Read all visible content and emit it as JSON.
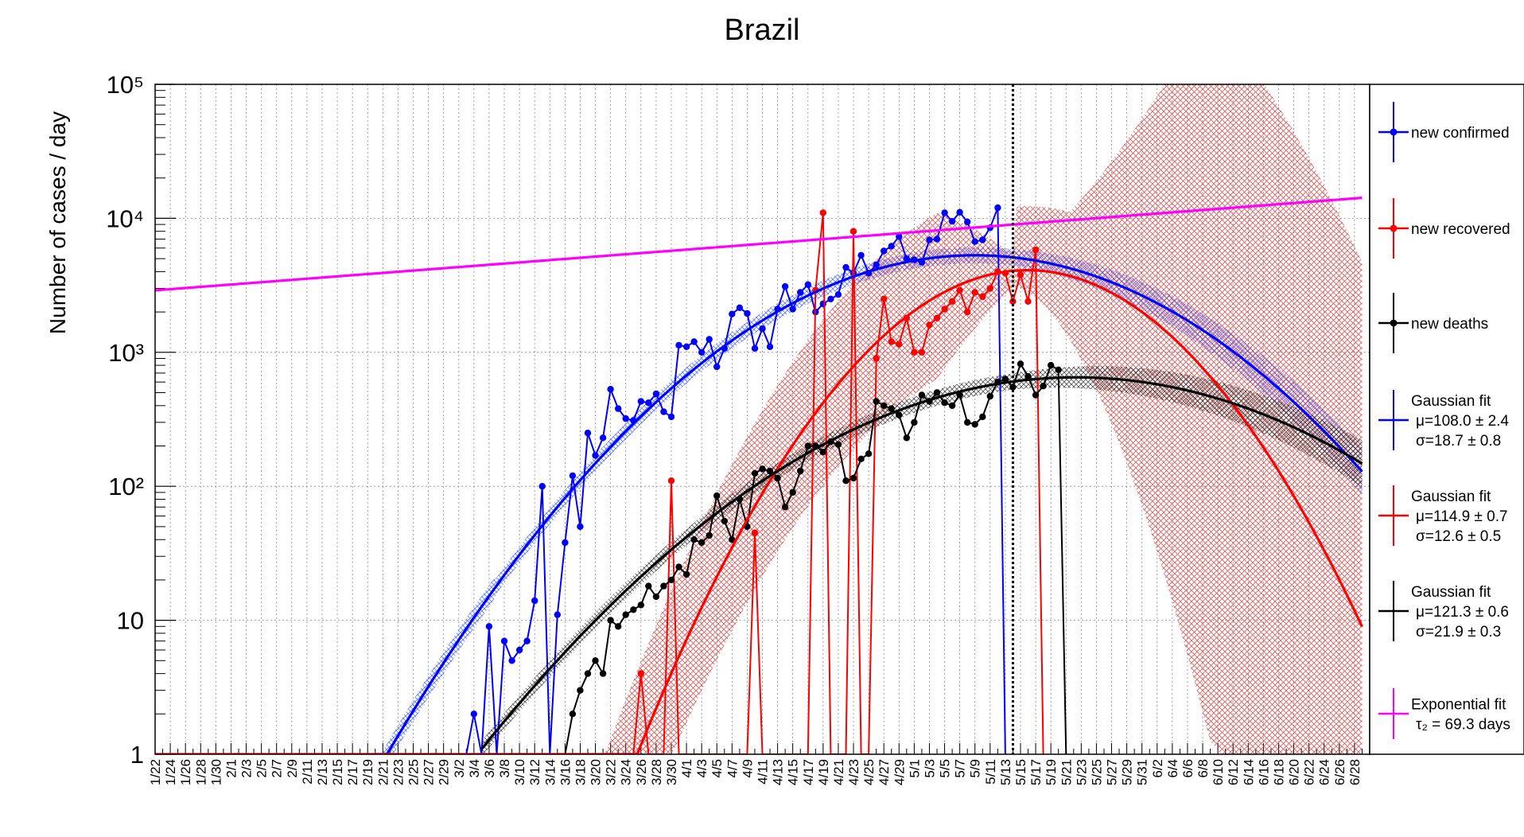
{
  "chart_data": {
    "type": "line",
    "title": "Brazil",
    "ylabel": "Number of cases / day",
    "xlabel": "",
    "yscale": "log",
    "ylim": [
      1,
      100000
    ],
    "y_tick_labels": [
      "1",
      "10",
      "10²",
      "10³",
      "10⁴",
      "10⁵"
    ],
    "x_range_days": [
      0,
      160
    ],
    "x_tick_labels": [
      "1/22",
      "1/24",
      "1/26",
      "1/28",
      "1/30",
      "2/1",
      "2/3",
      "2/5",
      "2/7",
      "2/9",
      "2/11",
      "2/13",
      "2/15",
      "2/17",
      "2/19",
      "2/21",
      "2/23",
      "2/25",
      "2/27",
      "2/29",
      "3/2",
      "3/4",
      "3/6",
      "3/8",
      "3/10",
      "3/12",
      "3/14",
      "3/16",
      "3/18",
      "3/20",
      "3/22",
      "3/24",
      "3/26",
      "3/28",
      "3/30",
      "4/1",
      "4/3",
      "4/5",
      "4/7",
      "4/9",
      "4/11",
      "4/13",
      "4/15",
      "4/17",
      "4/19",
      "4/21",
      "4/23",
      "4/25",
      "4/27",
      "4/29",
      "5/1",
      "5/3",
      "5/5",
      "5/7",
      "5/9",
      "5/11",
      "5/13",
      "5/15",
      "5/17",
      "5/19",
      "5/21",
      "5/23",
      "5/25",
      "5/27",
      "5/29",
      "5/31",
      "6/2",
      "6/4",
      "6/6",
      "6/8",
      "6/10",
      "6/12",
      "6/14",
      "6/16",
      "6/18",
      "6/20",
      "6/22",
      "6/24",
      "6/26",
      "6/28"
    ],
    "grid": true,
    "legend_position": "right",
    "current_date_marker": "5/14",
    "legend": [
      {
        "key": "confirmed",
        "lines": [
          "new confirmed"
        ],
        "color": "#0000ff",
        "style": "points"
      },
      {
        "key": "recovered",
        "lines": [
          "new recovered"
        ],
        "color": "#ff0000",
        "style": "points"
      },
      {
        "key": "deaths",
        "lines": [
          "new deaths"
        ],
        "color": "#000000",
        "style": "points"
      },
      {
        "key": "fit_confirmed",
        "lines": [
          "Gaussian fit",
          "μ=108.0 ± 2.4",
          "σ=18.7 ± 0.8"
        ],
        "color": "#0000ff",
        "style": "line"
      },
      {
        "key": "fit_recovered",
        "lines": [
          "Gaussian fit",
          "μ=114.9 ± 0.7",
          "σ=12.6 ± 0.5"
        ],
        "color": "#ff0000",
        "style": "line"
      },
      {
        "key": "fit_deaths",
        "lines": [
          "Gaussian fit",
          "μ=121.3 ± 0.6",
          "σ=21.9 ± 0.3"
        ],
        "color": "#000000",
        "style": "line"
      },
      {
        "key": "fit_exp",
        "lines": [
          "Exponential fit",
          "τ₂ = 69.3 days"
        ],
        "color": "#ff00ff",
        "style": "line"
      }
    ],
    "series": [
      {
        "name": "new confirmed",
        "color": "#0000ff",
        "start_date": "3/3",
        "values": [
          1,
          2,
          1,
          9,
          1,
          7,
          5,
          6,
          7,
          14,
          100,
          1,
          11,
          38,
          120,
          50,
          250,
          170,
          230,
          530,
          380,
          320,
          310,
          430,
          420,
          490,
          360,
          330,
          1130,
          1100,
          1200,
          1000,
          1250,
          780,
          1070,
          1930,
          2150,
          1950,
          1070,
          1500,
          1100,
          2100,
          3100,
          2100,
          2800,
          3200,
          2000,
          2300,
          2500,
          2700,
          4300,
          3900,
          5300,
          3900,
          4500,
          5700,
          6200,
          7300,
          5000,
          4900,
          4700,
          6900,
          7000,
          11000,
          9500,
          11100,
          9400,
          6700,
          6900,
          8500,
          12000,
          1
        ]
      },
      {
        "name": "new recovered",
        "color": "#ff0000",
        "start_date": "3/25",
        "values": [
          1,
          4,
          1,
          1,
          1,
          110,
          1,
          1,
          1,
          1,
          1,
          1,
          1,
          1,
          1,
          1,
          45,
          1,
          1,
          1,
          1,
          1,
          1,
          1,
          2900,
          11000,
          1,
          1,
          1,
          8000,
          1,
          1,
          900,
          2500,
          1200,
          1150,
          1800,
          1000,
          1000,
          1600,
          1800,
          2100,
          2400,
          2900,
          2000,
          2800,
          2600,
          3000,
          4000,
          3900,
          2400,
          3800,
          2400,
          5800,
          1
        ]
      },
      {
        "name": "new deaths",
        "color": "#000000",
        "start_date": "3/16",
        "values": [
          1,
          2,
          3,
          4,
          5,
          4,
          10,
          9,
          11,
          12,
          13,
          18,
          15,
          18,
          20,
          25,
          22,
          40,
          38,
          43,
          85,
          55,
          40,
          80,
          50,
          125,
          135,
          130,
          115,
          70,
          90,
          130,
          200,
          200,
          180,
          215,
          205,
          110,
          115,
          160,
          175,
          430,
          400,
          380,
          340,
          230,
          300,
          480,
          430,
          500,
          420,
          400,
          480,
          300,
          290,
          330,
          470,
          600,
          630,
          550,
          820,
          660,
          480,
          560,
          800,
          740,
          1
        ]
      }
    ],
    "fits": [
      {
        "name": "Gaussian fit",
        "kind": "gaussian",
        "color": "#0000ff",
        "mu": 108.0,
        "mu_err": 2.4,
        "sigma": 18.7,
        "sigma_err": 0.8,
        "peak_per_day": 5300,
        "x_range_days": [
          29,
          159
        ],
        "band": true
      },
      {
        "name": "Gaussian fit",
        "kind": "gaussian",
        "color": "#ff0000",
        "mu": 114.9,
        "mu_err": 0.7,
        "sigma": 12.6,
        "sigma_err": 0.5,
        "peak_per_day": 4100,
        "x_range_days": [
          0,
          159
        ],
        "band": true
      },
      {
        "name": "Gaussian fit",
        "kind": "gaussian",
        "color": "#000000",
        "mu": 121.3,
        "mu_err": 0.6,
        "sigma": 21.9,
        "sigma_err": 0.3,
        "peak_per_day": 650,
        "x_range_days": [
          43,
          159
        ],
        "band": true
      },
      {
        "name": "Exponential fit",
        "kind": "exponential",
        "color": "#ff00ff",
        "tau2_days": 69.3,
        "value_at_start": 2900,
        "x_range_days": [
          0,
          159
        ]
      }
    ]
  }
}
